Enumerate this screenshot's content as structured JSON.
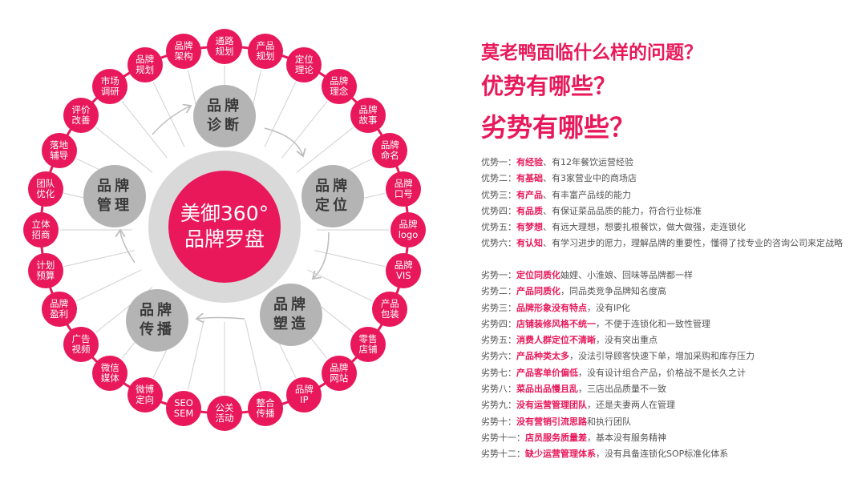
{
  "colors": {
    "accent": "#e8185a",
    "stage": "#b4b4b4",
    "core_ring": "#d9d9d9"
  },
  "diagram": {
    "core": {
      "line1": "美御360°",
      "line2": "品牌罗盘"
    },
    "stages": [
      "品牌\n诊断",
      "品牌\n定位",
      "品牌\n塑造",
      "品牌\n传播",
      "品牌\n管理"
    ],
    "ring": [
      "通路\n规划",
      "产品\n规划",
      "定位\n理论",
      "品牌\n理念",
      "品牌\n故事",
      "品牌\n命名",
      "品牌\n口号",
      "品牌\nlogo",
      "品牌\nVIS",
      "产品\n包装",
      "零售\n店铺",
      "品牌\n网站",
      "品牌\nIP",
      "整合\n传播",
      "公关\n活动",
      "SEO\nSEM",
      "微博\n定向",
      "微信\n媒体",
      "广告\n视频",
      "品牌\n盈利",
      "计划\n预算",
      "立体\n招商",
      "团队\n优化",
      "落地\n辅导",
      "评价\n改善",
      "市场\n调研",
      "品牌\n规划",
      "品牌\n架构"
    ]
  },
  "titles": {
    "question": "莫老鸭面临什么样的问题？",
    "advantages": "优势有哪些？",
    "disadvantages": "劣势有哪些？"
  },
  "advantages": [
    {
      "prefix": "优势一：",
      "key": "有经验",
      "rest": "、有12年餐饮运营经验"
    },
    {
      "prefix": "优势二：",
      "key": "有基础",
      "rest": "、有3家营业中的商场店"
    },
    {
      "prefix": "优势三：",
      "key": "有产品",
      "rest": "、有丰富产品线的能力"
    },
    {
      "prefix": "优势四：",
      "key": "有品质",
      "rest": "、有保证菜品品质的能力，符合行业标准"
    },
    {
      "prefix": "优势五：",
      "key": "有梦想",
      "rest": "、有远大理想，想要扎根餐饮，做大做强，走连锁化"
    },
    {
      "prefix": "优势六：",
      "key": "有认知",
      "rest": "、有学习进步的愿力，理解品牌的重要性，懂得了找专业的咨询公司来定战略"
    }
  ],
  "disadvantages": [
    {
      "prefix": "劣势一：",
      "key": "定位同质化",
      "rest": "妯娌、小淮娘、回味等品牌都一样"
    },
    {
      "prefix": "劣势二：",
      "key": "产品同质化",
      "rest": "，同品类竞争品牌知名度高"
    },
    {
      "prefix": "劣势三：",
      "key": "品牌形象没有特点",
      "rest": "，没有IP化"
    },
    {
      "prefix": "劣势四：",
      "key": "店铺装修风格不统一",
      "rest": "，不便于连锁化和一致性管理"
    },
    {
      "prefix": "劣势五：",
      "key": "消费人群定位不清晰",
      "rest": "，没有突出重点"
    },
    {
      "prefix": "劣势六：",
      "key": "产品种类太多",
      "rest": "，没法引导顾客快速下单，增加采购和库存压力"
    },
    {
      "prefix": "劣势七：",
      "key": "产品客单价偏低",
      "rest": "，没有设计组合产品，价格战不是长久之计"
    },
    {
      "prefix": "劣势八：",
      "key": "菜品出品慢且乱",
      "rest": "，三店出品质量不一致"
    },
    {
      "prefix": "劣势九：",
      "key": "没有运营管理团队",
      "rest": "，还是夫妻两人在管理"
    },
    {
      "prefix": "劣势十：",
      "key": "没有营销引流思路",
      "rest": "和执行团队"
    },
    {
      "prefix": "劣势十一：",
      "key": "店员服务质量差",
      "rest": "，基本没有服务精神"
    },
    {
      "prefix": "劣势十二：",
      "key": "缺少运营管理体系",
      "rest": "，没有具备连锁化SOP标准化体系"
    }
  ]
}
